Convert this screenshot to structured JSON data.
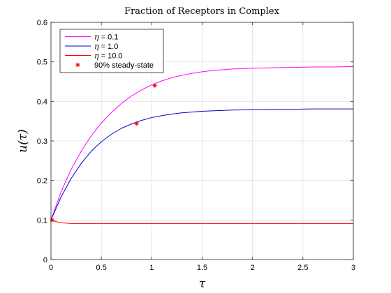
{
  "chart_data": {
    "type": "line",
    "title": "Fraction of Receptors in Complex",
    "xlabel": "τ",
    "ylabel": "u(τ)",
    "xlim": [
      0,
      3
    ],
    "ylim": [
      0,
      0.6
    ],
    "xticks": [
      0,
      0.5,
      1,
      1.5,
      2,
      2.5,
      3
    ],
    "xtick_labels": [
      "0",
      "0.5",
      "1",
      "1.5",
      "2",
      "2.5",
      "3"
    ],
    "yticks": [
      0,
      0.1,
      0.2,
      0.3,
      0.4,
      0.5,
      0.6
    ],
    "ytick_labels": [
      "0",
      "0.1",
      "0.2",
      "0.3",
      "0.4",
      "0.5",
      "0.6"
    ],
    "grid": true,
    "legend_position": "top-left",
    "series": [
      {
        "name": "= 0.1",
        "eta_symbol": "η",
        "color": "#ff00ff",
        "x": [
          0,
          0.1,
          0.2,
          0.3,
          0.4,
          0.5,
          0.6,
          0.7,
          0.8,
          0.9,
          1.0,
          1.1,
          1.2,
          1.3,
          1.4,
          1.5,
          1.6,
          1.8,
          2.0,
          2.2,
          2.4,
          2.6,
          2.8,
          3.0
        ],
        "y": [
          0.1,
          0.171,
          0.228,
          0.274,
          0.313,
          0.345,
          0.372,
          0.395,
          0.414,
          0.429,
          0.442,
          0.452,
          0.46,
          0.466,
          0.471,
          0.475,
          0.478,
          0.482,
          0.484,
          0.485,
          0.486,
          0.487,
          0.487,
          0.488
        ]
      },
      {
        "name": "= 1.0",
        "eta_symbol": "η",
        "color": "#0000cc",
        "x": [
          0,
          0.1,
          0.2,
          0.3,
          0.4,
          0.5,
          0.6,
          0.7,
          0.8,
          0.9,
          1.0,
          1.1,
          1.2,
          1.3,
          1.4,
          1.5,
          1.6,
          1.8,
          2.0,
          2.2,
          2.4,
          2.6,
          2.8,
          3.0
        ],
        "y": [
          0.1,
          0.158,
          0.205,
          0.243,
          0.274,
          0.298,
          0.317,
          0.332,
          0.343,
          0.352,
          0.359,
          0.364,
          0.368,
          0.371,
          0.373,
          0.375,
          0.376,
          0.378,
          0.379,
          0.38,
          0.38,
          0.381,
          0.381,
          0.381
        ]
      },
      {
        "name": "= 10.0",
        "eta_symbol": "η",
        "color": "#ff0000",
        "x": [
          0,
          0.05,
          0.1,
          0.15,
          0.2,
          0.3,
          0.4,
          0.6,
          0.8,
          1.0,
          1.5,
          2.0,
          2.5,
          3.0
        ],
        "y": [
          0.1,
          0.096,
          0.093,
          0.092,
          0.091,
          0.091,
          0.091,
          0.091,
          0.091,
          0.091,
          0.091,
          0.091,
          0.091,
          0.091
        ]
      }
    ],
    "markers": {
      "name": "90% steady-state",
      "symbol": "*",
      "color": "#ff0000",
      "points": [
        {
          "x": 1.03,
          "y": 0.44
        },
        {
          "x": 0.85,
          "y": 0.344
        },
        {
          "x": 0.01,
          "y": 0.1
        }
      ]
    }
  }
}
